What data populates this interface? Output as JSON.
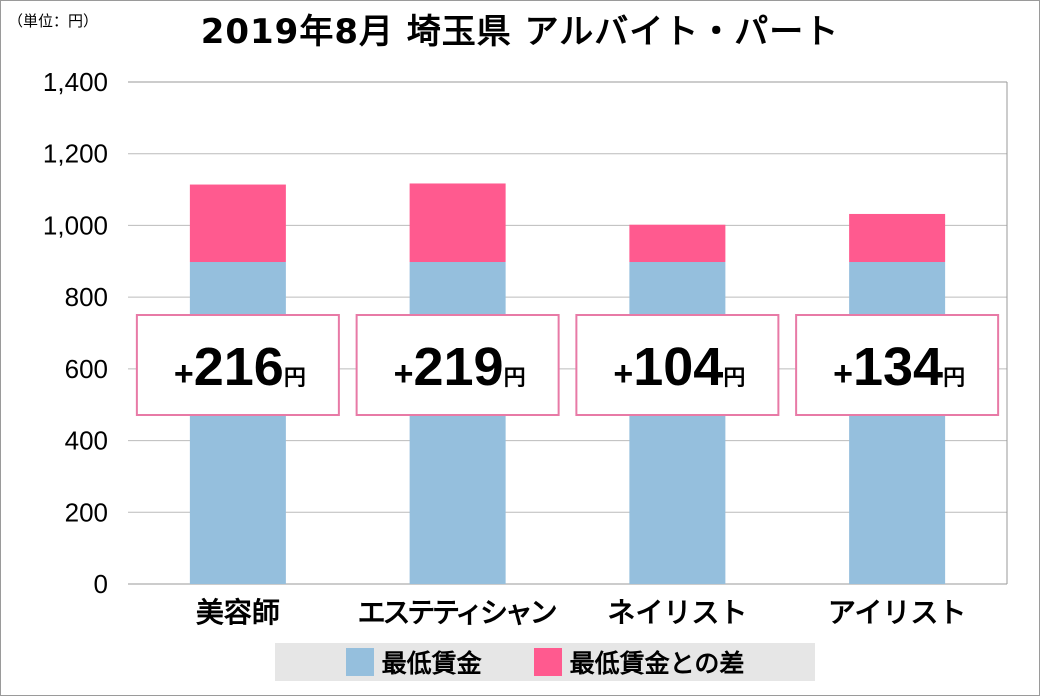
{
  "unit_label": "（単位：円）",
  "colors": {
    "base": "#95bfdd",
    "diff": "#ff5a8f",
    "grid": "#bcbcbc",
    "callout_border": "#e87aa6"
  },
  "chart_data": {
    "type": "bar",
    "stacked": true,
    "title": "2019年8月 埼玉県 アルバイト・パート",
    "categories": [
      "美容師",
      "エステティシャン",
      "ネイリスト",
      "アイリスト"
    ],
    "series": [
      {
        "name": "最低賃金",
        "values": [
          898,
          898,
          898,
          898
        ]
      },
      {
        "name": "最低賃金との差",
        "values": [
          216,
          219,
          104,
          134
        ]
      }
    ],
    "callouts": [
      {
        "prefix": "+",
        "number": "216",
        "suffix": "円"
      },
      {
        "prefix": "+",
        "number": "219",
        "suffix": "円"
      },
      {
        "prefix": "+",
        "number": "104",
        "suffix": "円"
      },
      {
        "prefix": "+",
        "number": "134",
        "suffix": "円"
      }
    ],
    "ylim": [
      0,
      1400
    ],
    "yticks": [
      "0",
      "200",
      "400",
      "600",
      "800",
      "1,000",
      "1,200",
      "1,400"
    ],
    "grid": true,
    "legend_position": "bottom"
  }
}
